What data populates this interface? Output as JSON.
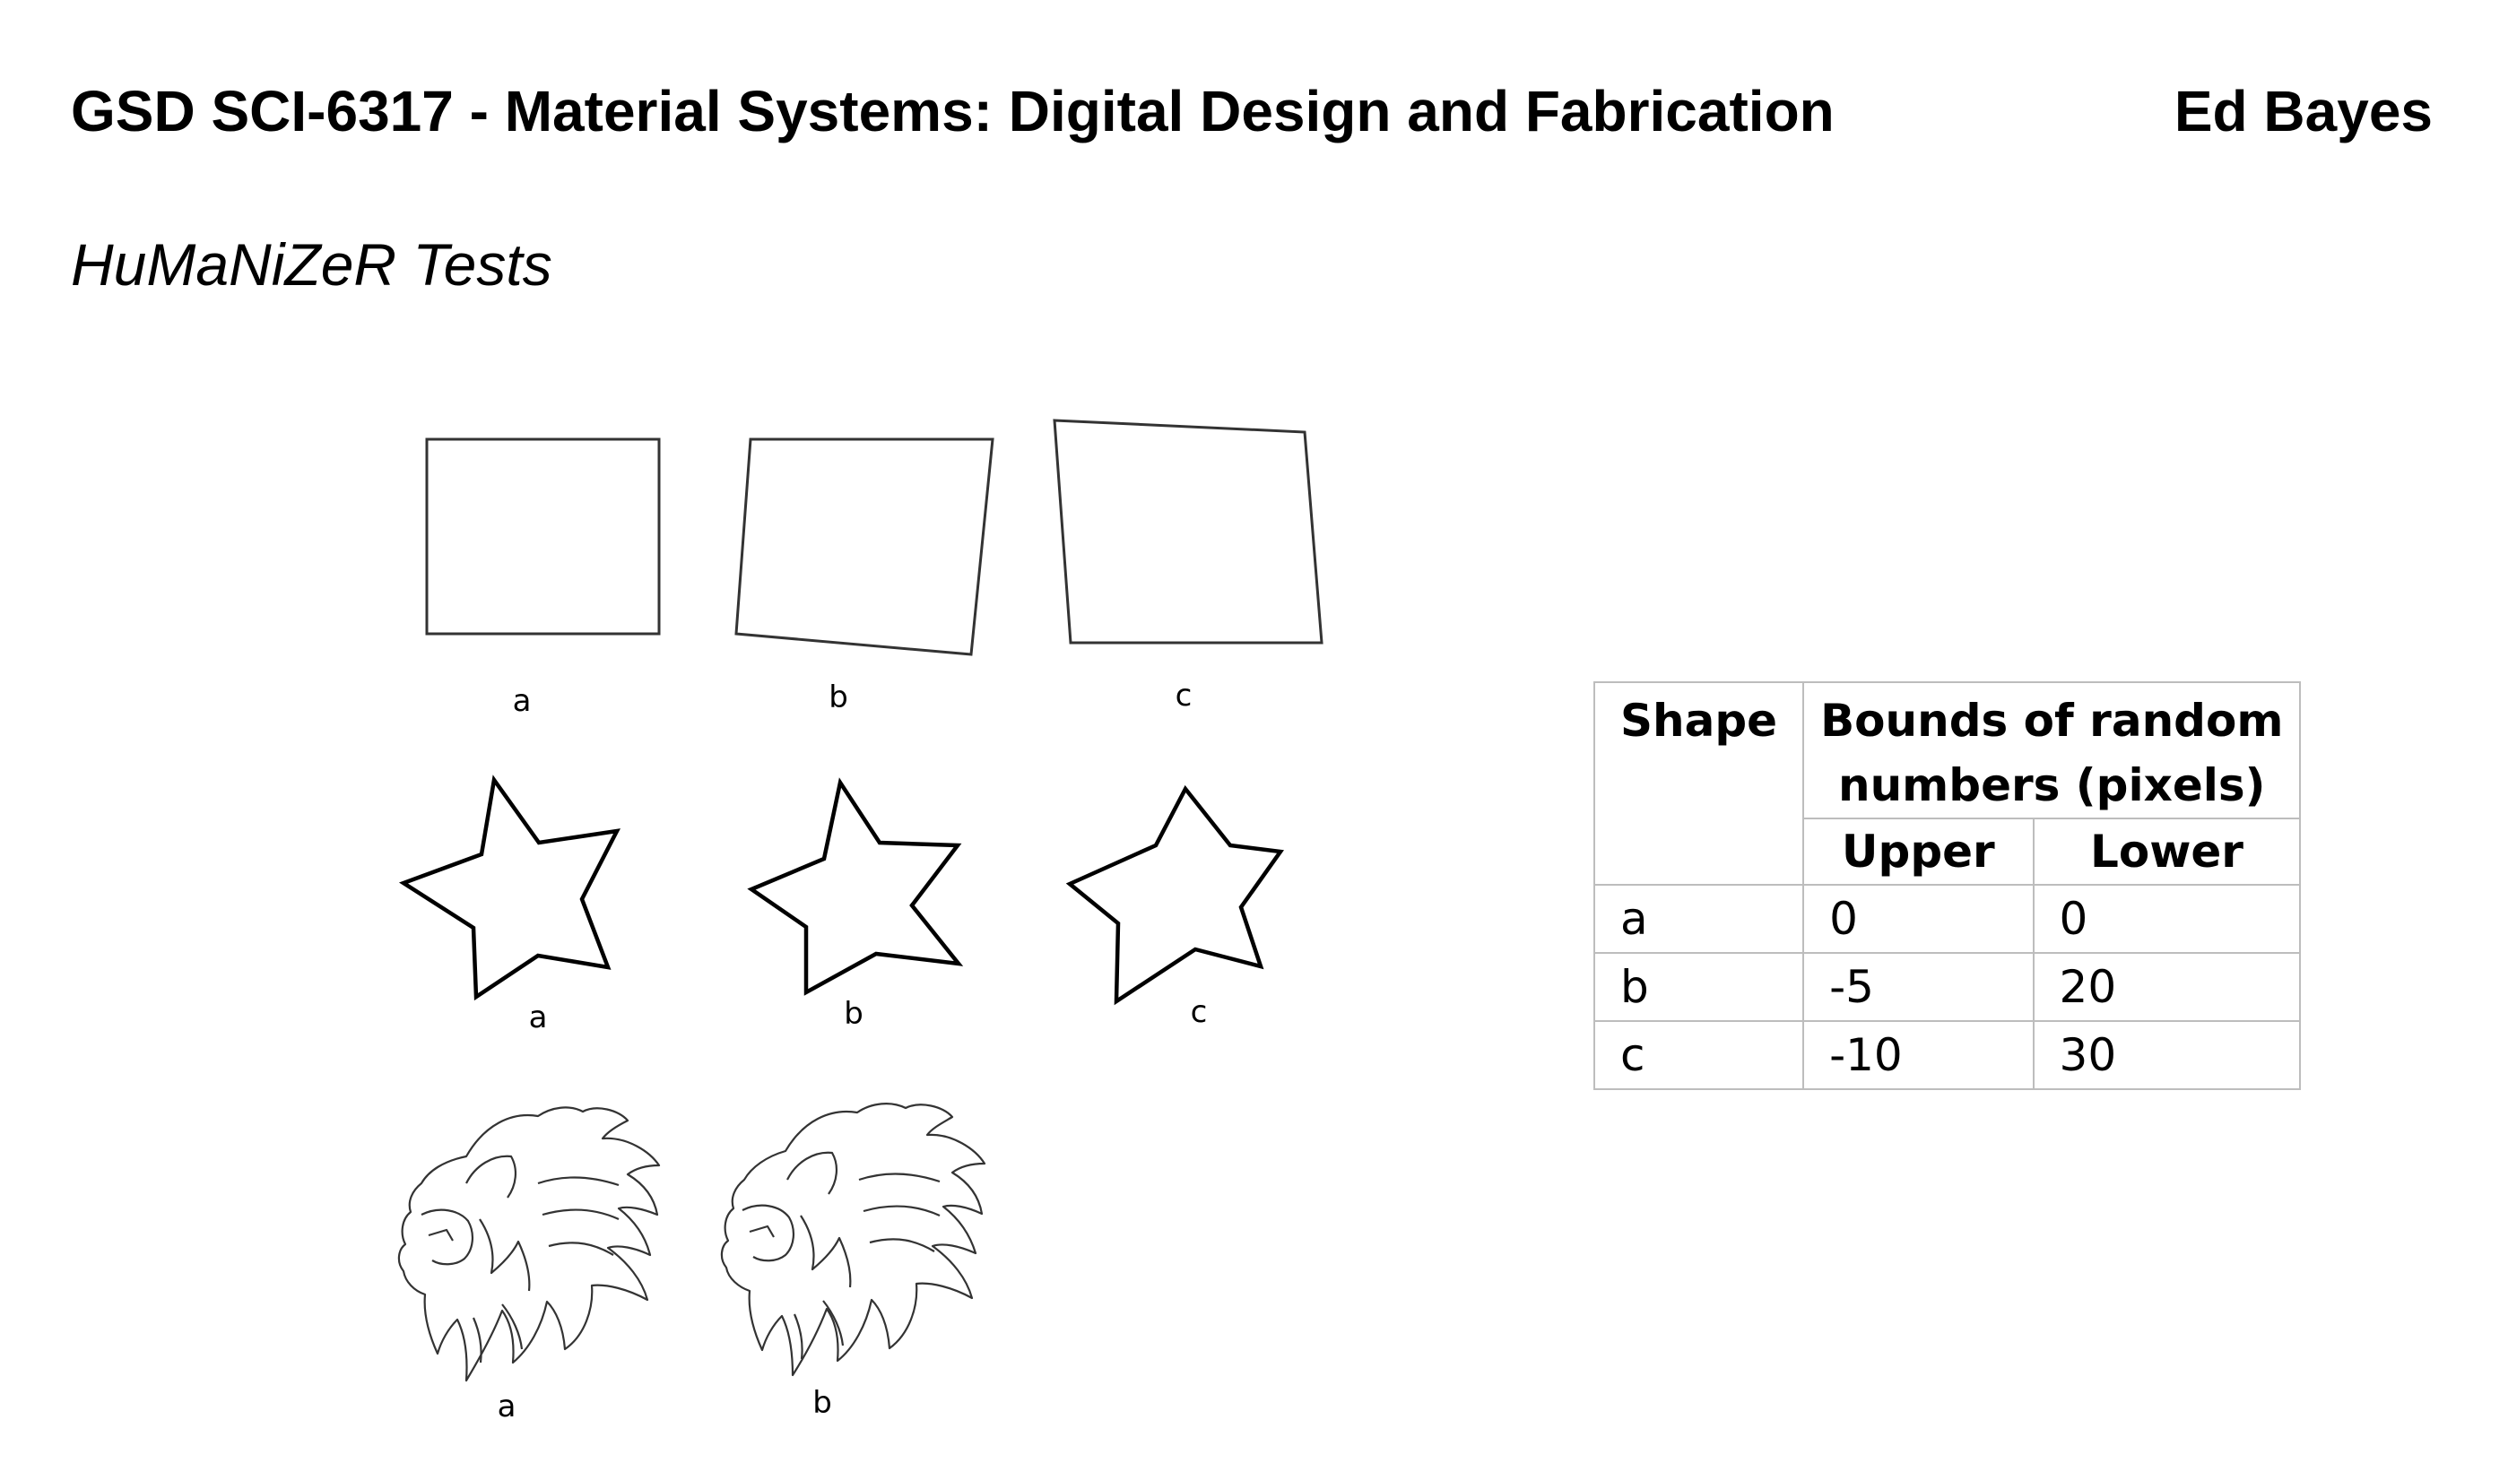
{
  "header": {
    "course_title": "GSD SCI-6317 - Material Systems: Digital Design and Fabrication",
    "author": "Ed Bayes"
  },
  "subtitle": "HuMaNiZeR Tests",
  "figures": {
    "square_labels": [
      "a",
      "b",
      "c"
    ],
    "star_labels": [
      "a",
      "b",
      "c"
    ],
    "lion_labels": [
      "a",
      "b"
    ]
  },
  "table": {
    "col_shape": "Shape",
    "col_bounds_line1": "Bounds of random",
    "col_bounds_line2": "numbers (pixels)",
    "col_upper": "Upper",
    "col_lower": "Lower",
    "rows": [
      {
        "shape": "a",
        "upper": "0",
        "lower": "0"
      },
      {
        "shape": "b",
        "upper": "-5",
        "lower": "20"
      },
      {
        "shape": "c",
        "upper": "-10",
        "lower": "30"
      }
    ]
  }
}
